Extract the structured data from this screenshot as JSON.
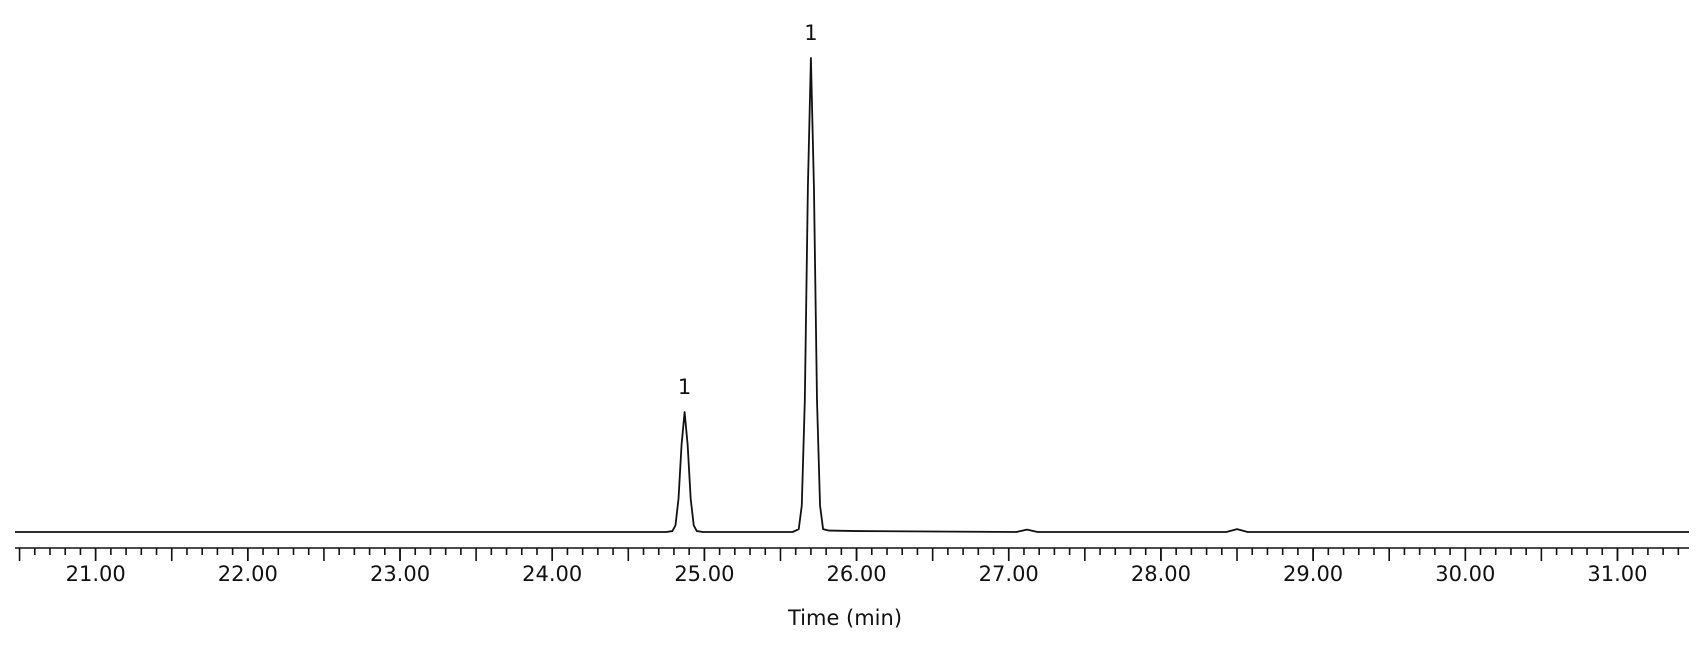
{
  "chart_data": {
    "type": "line",
    "x_label": "Time (min)",
    "xlim": [
      20.47,
      31.47
    ],
    "ylim": [
      0,
      100
    ],
    "xticks": [
      {
        "value": 21,
        "label": "21.00"
      },
      {
        "value": 22,
        "label": "22.00"
      },
      {
        "value": 23,
        "label": "23.00"
      },
      {
        "value": 24,
        "label": "24.00"
      },
      {
        "value": 25,
        "label": "25.00"
      },
      {
        "value": 26,
        "label": "26.00"
      },
      {
        "value": 27,
        "label": "27.00"
      },
      {
        "value": 28,
        "label": "28.00"
      },
      {
        "value": 29,
        "label": "29.00"
      },
      {
        "value": 30,
        "label": "30.00"
      },
      {
        "value": 31,
        "label": "31.00"
      }
    ],
    "xminor_step": 0.1,
    "series": [
      {
        "color": "#111111",
        "x": [
          20.47,
          24.0,
          24.75,
          24.79,
          24.81,
          24.83,
          24.85,
          24.87,
          24.89,
          24.91,
          24.93,
          24.95,
          24.99,
          25.58,
          25.62,
          25.64,
          25.66,
          25.68,
          25.7,
          25.72,
          25.74,
          25.76,
          25.78,
          25.82,
          26.0,
          27.05,
          27.12,
          27.19,
          28.43,
          28.5,
          28.57,
          31.47
        ],
        "values": [
          0,
          0,
          0,
          0.2,
          1.4,
          7.0,
          18.4,
          25.3,
          18.4,
          7.0,
          1.4,
          0.2,
          0,
          0,
          0.6,
          5.6,
          27.8,
          72.6,
          100,
          72.6,
          27.8,
          5.6,
          0.6,
          0.3,
          0.2,
          0,
          0.5,
          0,
          0,
          0.6,
          0,
          0
        ]
      }
    ],
    "annotations": [
      {
        "text": "1",
        "x": 24.87,
        "y": 25.3
      },
      {
        "text": "1",
        "x": 25.7,
        "y": 100
      }
    ]
  }
}
